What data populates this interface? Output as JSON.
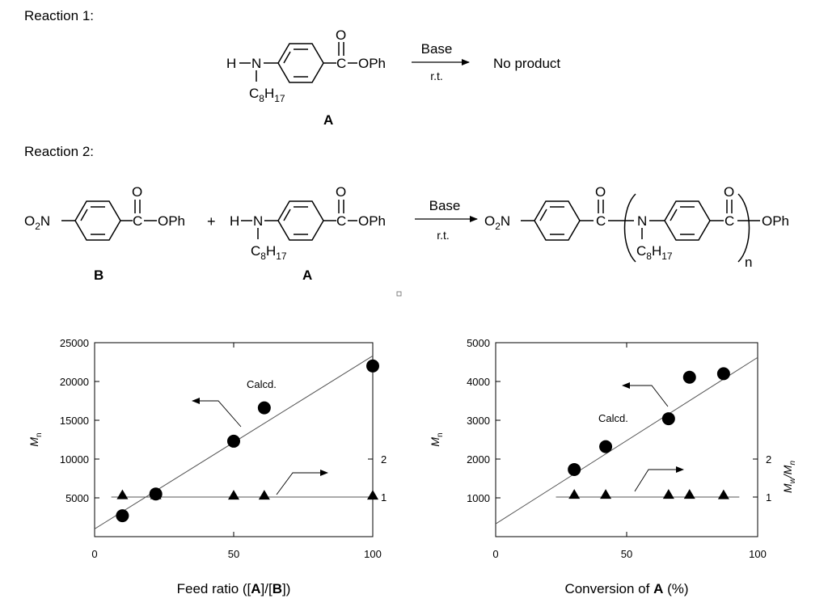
{
  "reaction1": {
    "label": "Reaction 1:",
    "reactant_label": "A",
    "condition_top": "Base",
    "condition_bottom": "r.t.",
    "result": "No product"
  },
  "reaction2": {
    "label": "Reaction 2:",
    "reactant1_label": "B",
    "reactant2_label": "A",
    "plus": "+",
    "condition_top": "Base",
    "condition_bottom": "r.t.",
    "repeat_subscript": "n"
  },
  "chem": {
    "h": "H",
    "n": "N",
    "o": "O",
    "c": "C",
    "oph": "OPh",
    "c8": "C",
    "c8_sub1": "8",
    "h17": "H",
    "c8_sub2": "17",
    "o2": "O",
    "o2_sub": "2",
    "o2_n": "N"
  },
  "chart_data": [
    {
      "type": "scatter",
      "xlabel": "Feed ratio ([A]/[B])",
      "xlabel_parts": [
        "Feed ratio ([",
        "A",
        "]/[",
        "B",
        "])"
      ],
      "ylabel": "M",
      "ylabel_sub": "n",
      "xlim": [
        0,
        100
      ],
      "ylim": [
        0,
        25000
      ],
      "x_ticks": [
        0,
        50,
        100
      ],
      "y_ticks": [
        5000,
        10000,
        15000,
        20000,
        25000
      ],
      "y2_ticks": [
        1,
        2
      ],
      "annotation": "Calcd.",
      "calc_line": {
        "x": [
          0,
          100
        ],
        "y": [
          1000,
          23300
        ]
      },
      "series": [
        {
          "marker": "circle",
          "axis": "left",
          "x": [
            10,
            22,
            50,
            61,
            100
          ],
          "y": [
            2700,
            5500,
            12300,
            16600,
            22000
          ]
        },
        {
          "marker": "triangle",
          "axis": "right",
          "x": [
            10,
            22,
            50,
            61,
            100
          ],
          "y": [
            1.05,
            1.05,
            1.04,
            1.04,
            1.04
          ]
        }
      ],
      "y2_line": 1.0,
      "y2_line_x": [
        6,
        100
      ]
    },
    {
      "type": "scatter",
      "xlabel": "Conversion of A (%)",
      "xlabel_parts": [
        "Conversion of ",
        "A",
        " (%)"
      ],
      "ylabel": "M",
      "ylabel_sub": "n",
      "y2label": "M",
      "y2label_sub1": "w",
      "y2label_mid": "/M",
      "y2label_sub2": "n",
      "xlim": [
        0,
        100
      ],
      "ylim": [
        0,
        5000
      ],
      "x_ticks": [
        0,
        50,
        100
      ],
      "y_ticks": [
        1000,
        2000,
        3000,
        4000,
        5000
      ],
      "y2_ticks": [
        1,
        2
      ],
      "annotation": "Calcd.",
      "calc_line": {
        "x": [
          0,
          100
        ],
        "y": [
          330,
          4620
        ]
      },
      "series": [
        {
          "marker": "circle",
          "axis": "left",
          "x": [
            30,
            42,
            66,
            74,
            87
          ],
          "y": [
            1730,
            2320,
            3040,
            4110,
            4200
          ]
        },
        {
          "marker": "triangle",
          "axis": "right",
          "x": [
            30,
            42,
            66,
            74,
            87
          ],
          "y": [
            1.06,
            1.06,
            1.06,
            1.06,
            1.05
          ]
        }
      ],
      "y2_line": 1.0,
      "y2_line_x": [
        23,
        93
      ]
    }
  ]
}
